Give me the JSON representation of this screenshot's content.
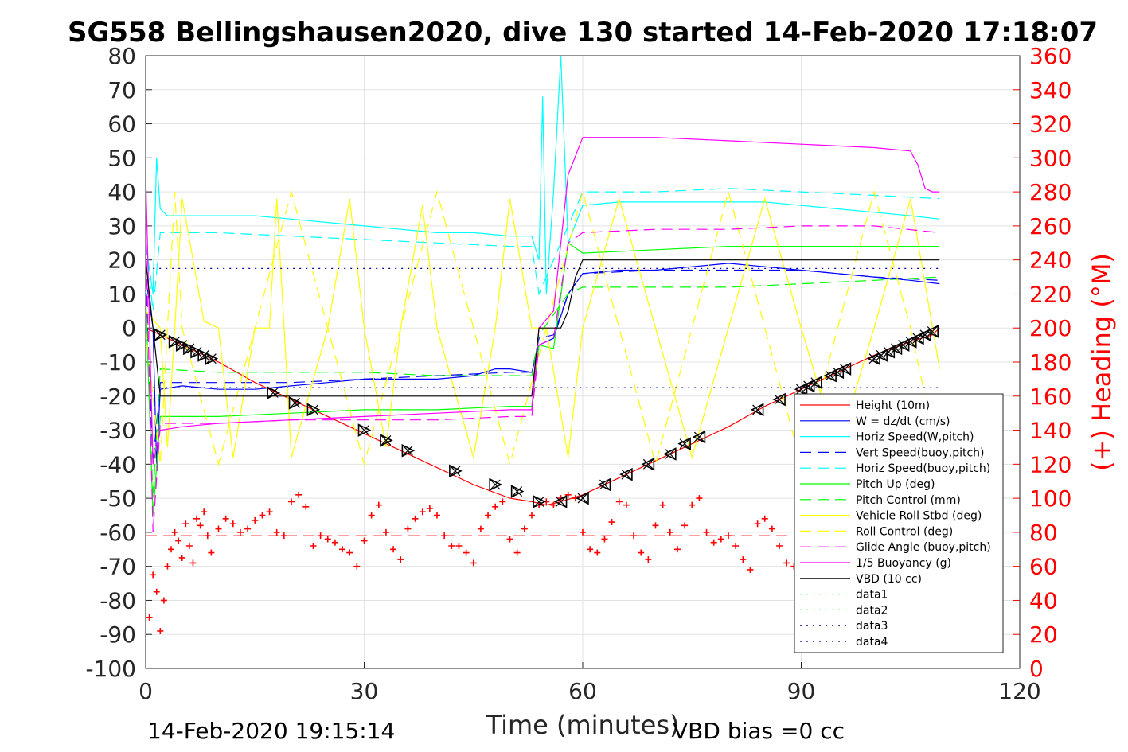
{
  "chart_data": {
    "type": "line",
    "title": "SG558 Bellingshausen2020, dive 130 started 14-Feb-2020 17:18:07",
    "xlabel": "Time (minutes)",
    "ylabel": "",
    "ylabel_right": "(+) Heading (°M)",
    "xlim": [
      0,
      120
    ],
    "ylim": [
      -100,
      80
    ],
    "ylim_right": [
      0,
      360
    ],
    "x_ticks": [
      "0",
      "30",
      "60",
      "90",
      "120"
    ],
    "y_ticks": [
      "80",
      "70",
      "60",
      "50",
      "40",
      "30",
      "20",
      "10",
      "0",
      "-10",
      "-20",
      "-30",
      "-40",
      "-50",
      "-60",
      "-70",
      "-80",
      "-90",
      "-100"
    ],
    "y_ticks_right": [
      "360",
      "340",
      "320",
      "300",
      "280",
      "260",
      "240",
      "220",
      "200",
      "180",
      "160",
      "140",
      "120",
      "100",
      "80",
      "60",
      "40",
      "20",
      "0"
    ],
    "grid": true,
    "legend_position": "bottom-right",
    "footer_left": "14-Feb-2020 19:15:14",
    "footer_right": "VBD bias =0 cc",
    "colors": {
      "red": "#ff0000",
      "blue": "#0000ff",
      "cyan": "#00ffff",
      "green": "#00ff00",
      "yellow": "#ffff00",
      "magenta": "#ff00ff",
      "black": "#000000",
      "navy": "#000099"
    },
    "series": [
      {
        "name": "Height (10m)",
        "color": "#ff0000",
        "dash": "solid",
        "x": [
          0,
          2,
          5,
          10,
          15,
          20,
          25,
          30,
          35,
          40,
          45,
          50,
          53,
          55,
          57,
          60,
          65,
          70,
          75,
          80,
          85,
          90,
          95,
          100,
          105,
          108,
          109
        ],
        "y": [
          0,
          -2,
          -5,
          -10,
          -16,
          -21,
          -26,
          -31,
          -36,
          -41,
          -46,
          -50,
          -51,
          -52,
          -51,
          -49,
          -44,
          -39,
          -34,
          -29,
          -23,
          -18,
          -13,
          -8,
          -4,
          -2,
          0
        ]
      },
      {
        "name": "W = dz/dt (cm/s)",
        "color": "#0000ff",
        "dash": "solid",
        "x": [
          0,
          1,
          1.5,
          2,
          5,
          10,
          15,
          20,
          25,
          30,
          35,
          40,
          45,
          48,
          50,
          53,
          54,
          56,
          58,
          60,
          65,
          70,
          75,
          80,
          85,
          90,
          95,
          100,
          105,
          109
        ],
        "y": [
          15,
          0,
          -40,
          -18,
          -17,
          -18,
          -18,
          -17,
          -16,
          -15,
          -15,
          -15,
          -14,
          -12,
          -12,
          -13,
          -5,
          -3,
          10,
          16,
          17,
          17,
          18,
          19,
          18,
          17,
          16,
          15,
          14,
          13
        ]
      },
      {
        "name": "Horiz Speed(W,pitch)",
        "color": "#00ffff",
        "dash": "solid",
        "x": [
          0,
          1,
          1.5,
          2,
          3,
          5,
          10,
          15,
          20,
          25,
          30,
          35,
          40,
          45,
          50,
          53,
          54,
          54.5,
          55,
          56,
          57,
          58,
          60,
          65,
          70,
          75,
          80,
          85,
          90,
          95,
          100,
          105,
          109
        ],
        "y": [
          25,
          10,
          50,
          35,
          33,
          33,
          33,
          33,
          32,
          31,
          30,
          29,
          28,
          28,
          27,
          27,
          20,
          68,
          10,
          40,
          80,
          25,
          36,
          37,
          37,
          37,
          37,
          37,
          36,
          35,
          34,
          33,
          32
        ]
      },
      {
        "name": "Vert Speed(buoy,pitch)",
        "color": "#0000ff",
        "dash": "dashed",
        "x": [
          0,
          1,
          2,
          5,
          10,
          20,
          30,
          40,
          50,
          53,
          54,
          56,
          58,
          60,
          70,
          80,
          90,
          100,
          109
        ],
        "y": [
          15,
          -40,
          -16,
          -16,
          -16,
          -16,
          -15,
          -14,
          -13,
          -13,
          -3,
          -2,
          10,
          16,
          17,
          17,
          17,
          15,
          14
        ]
      },
      {
        "name": "Horiz Speed(buoy,pitch)",
        "color": "#00ffff",
        "dash": "dashed",
        "x": [
          0,
          1,
          2,
          5,
          10,
          20,
          30,
          40,
          50,
          53,
          54,
          56,
          58,
          60,
          70,
          80,
          90,
          100,
          109
        ],
        "y": [
          25,
          5,
          28,
          28,
          28,
          27,
          26,
          25,
          24,
          24,
          10,
          20,
          30,
          40,
          40,
          41,
          40,
          39,
          38
        ]
      },
      {
        "name": "Pitch Up (deg)",
        "color": "#00ff00",
        "dash": "solid",
        "x": [
          0,
          1,
          2,
          5,
          10,
          20,
          30,
          40,
          50,
          53,
          54,
          56,
          58,
          60,
          70,
          80,
          90,
          100,
          109
        ],
        "y": [
          10,
          -55,
          -26,
          -26,
          -26,
          -25,
          -24,
          -24,
          -23,
          -23,
          -5,
          -6,
          25,
          22,
          23,
          24,
          24,
          24,
          24
        ]
      },
      {
        "name": "Pitch Control (mm)",
        "color": "#00ff00",
        "dash": "dashed",
        "x": [
          0,
          1,
          2,
          10,
          20,
          30,
          40,
          50,
          53,
          54,
          58,
          60,
          70,
          80,
          90,
          100,
          109
        ],
        "y": [
          10,
          -50,
          -12,
          -13,
          -13,
          -13,
          -14,
          -14,
          -14,
          -2,
          10,
          12,
          12,
          12,
          13,
          14,
          15
        ]
      },
      {
        "name": "Vehicle Roll Stbd (deg)",
        "color": "#ffff00",
        "dash": "solid",
        "x": [
          0,
          2,
          3,
          4,
          5,
          8,
          10,
          12,
          15,
          17,
          18,
          19,
          20,
          25,
          28,
          30,
          33,
          35,
          38,
          40,
          45,
          48,
          50,
          53,
          55,
          58,
          60,
          65,
          70,
          75,
          80,
          85,
          90,
          95,
          100,
          105,
          109
        ],
        "y": [
          5,
          0,
          -35,
          0,
          38,
          2,
          0,
          -38,
          0,
          0,
          38,
          0,
          -38,
          0,
          38,
          0,
          -35,
          0,
          36,
          0,
          -38,
          0,
          38,
          0,
          0,
          -38,
          0,
          38,
          0,
          -38,
          0,
          38,
          0,
          -36,
          0,
          38,
          -12
        ]
      },
      {
        "name": "Roll Control (deg)",
        "color": "#ffff00",
        "dash": "dashed",
        "x": [
          0,
          2,
          3,
          4,
          5,
          10,
          15,
          20,
          25,
          30,
          35,
          40,
          45,
          50,
          55,
          60,
          65,
          70,
          75,
          80,
          85,
          90,
          95,
          100,
          105,
          109
        ],
        "y": [
          0,
          -40,
          0,
          40,
          0,
          -40,
          0,
          40,
          0,
          -40,
          0,
          40,
          0,
          -40,
          0,
          40,
          0,
          -40,
          0,
          40,
          0,
          -40,
          0,
          40,
          0,
          -40
        ]
      },
      {
        "name": "Glide Angle (buoy,pitch)",
        "color": "#ff00ff",
        "dash": "dashed",
        "x": [
          0,
          1,
          2,
          5,
          10,
          20,
          30,
          40,
          50,
          53,
          54,
          56,
          58,
          60,
          70,
          80,
          90,
          100,
          109
        ],
        "y": [
          30,
          -60,
          -28,
          -28,
          -28,
          -27,
          -27,
          -27,
          -26,
          -26,
          -5,
          -3,
          25,
          28,
          29,
          29,
          30,
          30,
          28
        ]
      },
      {
        "name": "1/5 Buoyancy (g)",
        "color": "#ff00ff",
        "dash": "solid",
        "x": [
          0,
          1,
          2,
          5,
          10,
          20,
          30,
          40,
          50,
          53,
          54,
          56,
          58,
          60,
          65,
          70,
          80,
          90,
          100,
          105,
          106,
          107,
          108,
          109
        ],
        "y": [
          45,
          -40,
          -30,
          -29,
          -28,
          -27,
          -26,
          -25,
          -24,
          -24,
          0,
          5,
          45,
          56,
          56,
          56,
          55,
          54,
          53,
          52,
          48,
          41,
          40,
          40
        ]
      },
      {
        "name": "VBD (10 cc)",
        "color": "#000000",
        "dash": "solid",
        "x": [
          0,
          1,
          2,
          5,
          10,
          20,
          30,
          40,
          50,
          53,
          54,
          56,
          57,
          58,
          59,
          60,
          70,
          80,
          90,
          100,
          109
        ],
        "y": [
          20,
          0,
          -20,
          -20,
          -20,
          -20,
          -20,
          -20,
          -20,
          -20,
          0,
          0,
          0,
          5,
          15,
          20,
          20,
          20,
          20,
          20,
          20
        ]
      },
      {
        "name": "data1",
        "color": "#00ff00",
        "dash": "dotted",
        "x": [],
        "y": []
      },
      {
        "name": "data2",
        "color": "#00ff00",
        "dash": "dotted",
        "x": [],
        "y": []
      },
      {
        "name": "data3",
        "color": "#000099",
        "dash": "dotted",
        "x": [
          1,
          109
        ],
        "y": [
          17.5,
          17.5
        ]
      },
      {
        "name": "data4",
        "color": "#000099",
        "dash": "dotted",
        "x": [
          1,
          109
        ],
        "y": [
          -17.5,
          -17.5
        ]
      }
    ],
    "heading_target": {
      "color": "#ff0000",
      "dash": "dashed",
      "x": [
        0,
        109
      ],
      "y_right": [
        78,
        78
      ]
    },
    "heading": {
      "color": "#ff0000",
      "marker": "+",
      "x": [
        0.5,
        1,
        1.5,
        2,
        2.5,
        3,
        3.5,
        4,
        4.5,
        5,
        5.5,
        6,
        6.5,
        7,
        7.5,
        8,
        8.5,
        9,
        10,
        11,
        12,
        13,
        14,
        15,
        16,
        17,
        18,
        19,
        20,
        21,
        22,
        23,
        24,
        25,
        26,
        27,
        28,
        29,
        30,
        31,
        32,
        33,
        34,
        35,
        36,
        37,
        38,
        39,
        40,
        41,
        42,
        43,
        44,
        45,
        46,
        47,
        48,
        49,
        50,
        51,
        52,
        53,
        54,
        55,
        56,
        57,
        58,
        59,
        60,
        61,
        62,
        63,
        64,
        65,
        66,
        67,
        68,
        69,
        70,
        71,
        72,
        73,
        74,
        75,
        76,
        77,
        78,
        79,
        80,
        81,
        82,
        83,
        84,
        85,
        86,
        87,
        88,
        89
      ],
      "y": [
        30,
        55,
        45,
        22,
        40,
        60,
        70,
        80,
        75,
        65,
        85,
        72,
        62,
        88,
        84,
        92,
        78,
        68,
        82,
        88,
        85,
        80,
        82,
        87,
        90,
        92,
        80,
        78,
        98,
        102,
        95,
        72,
        78,
        76,
        74,
        70,
        68,
        60,
        75,
        90,
        96,
        80,
        70,
        64,
        82,
        88,
        92,
        94,
        90,
        78,
        72,
        72,
        68,
        62,
        82,
        90,
        95,
        98,
        76,
        68,
        82,
        90,
        96,
        98,
        96,
        100,
        102,
        100,
        80,
        70,
        68,
        76,
        86,
        98,
        96,
        78,
        68,
        64,
        84,
        96,
        80,
        70,
        84,
        96,
        100,
        80,
        74,
        76,
        78,
        72,
        64,
        58,
        85,
        88,
        82,
        72,
        62,
        60
      ]
    }
  },
  "markers": {
    "x": [
      2,
      4,
      5,
      6,
      7,
      8,
      9,
      17.5,
      20.5,
      23,
      30,
      33,
      36,
      42.5,
      48,
      51,
      54,
      57,
      60,
      63,
      66,
      69,
      72,
      74,
      76,
      84,
      87,
      90,
      91,
      92,
      94,
      95,
      96,
      100,
      101,
      102,
      103,
      104,
      105,
      106,
      107,
      108
    ],
    "y": [
      -2,
      -4,
      -5,
      -6,
      -7,
      -8,
      -9,
      -19,
      -22,
      -24,
      -30,
      -33,
      -36,
      -42,
      -46,
      -48,
      -51,
      -51,
      -50,
      -46,
      -43,
      -40,
      -37,
      -34,
      -32,
      -24,
      -21,
      -18,
      -17,
      -16,
      -14,
      -13,
      -12,
      -9,
      -8,
      -7,
      -6,
      -5,
      -4,
      -3,
      -2,
      -1
    ]
  }
}
